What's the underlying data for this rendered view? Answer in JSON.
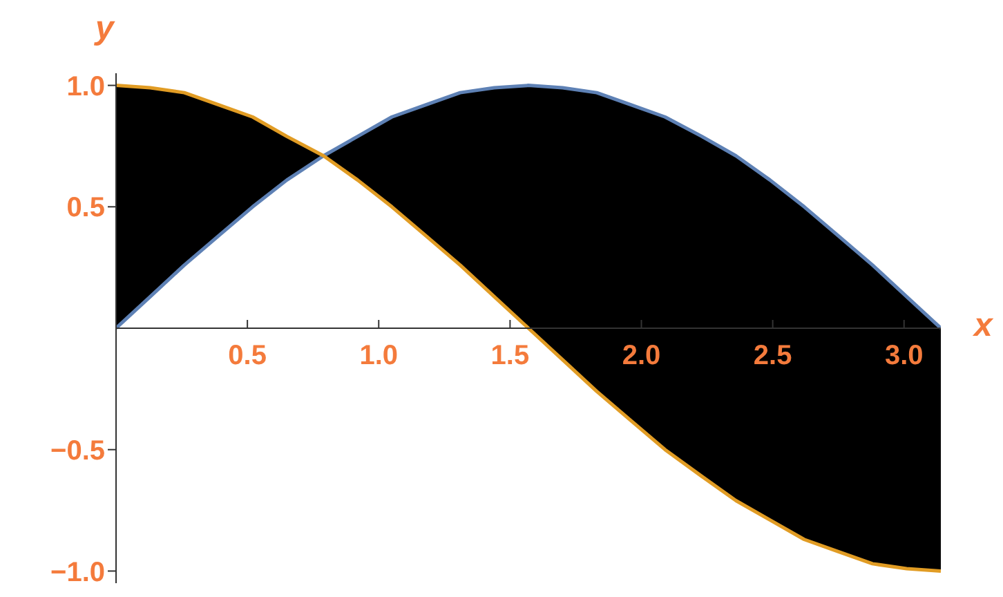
{
  "chart_data": {
    "type": "line",
    "xlabel": "x",
    "ylabel": "y",
    "x": [
      0,
      0.13,
      0.26,
      0.39,
      0.52,
      0.65,
      0.79,
      0.92,
      1.05,
      1.18,
      1.31,
      1.44,
      1.57,
      1.7,
      1.83,
      1.96,
      2.09,
      2.23,
      2.36,
      2.49,
      2.62,
      2.75,
      2.88,
      3.01,
      3.14
    ],
    "series": [
      {
        "color": "#5e81b5",
        "values": [
          0,
          0.13,
          0.26,
          0.38,
          0.5,
          0.61,
          0.71,
          0.79,
          0.87,
          0.92,
          0.97,
          0.99,
          1,
          0.99,
          0.97,
          0.92,
          0.87,
          0.79,
          0.71,
          0.61,
          0.5,
          0.38,
          0.26,
          0.13,
          0
        ],
        "lower": [
          0,
          0.13,
          0.26,
          0.38,
          0.5,
          0.61,
          0.71,
          0.61,
          0.5,
          0.38,
          0.26,
          0.13,
          0,
          -0.13,
          -0.26,
          -0.38,
          -0.5,
          -0.61,
          -0.71,
          -0.79,
          -0.87,
          -0.92,
          -0.97,
          -0.99,
          -1
        ],
        "upper": [
          1,
          0.99,
          0.97,
          0.92,
          0.87,
          0.79,
          0.71,
          0.79,
          0.87,
          0.92,
          0.97,
          0.99,
          1,
          0.99,
          0.97,
          0.92,
          0.87,
          0.79,
          0.71,
          0.61,
          0.5,
          0.38,
          0.26,
          0.13,
          0
        ]
      },
      {
        "color": "#e19c24",
        "values": [
          1,
          0.99,
          0.97,
          0.92,
          0.87,
          0.79,
          0.71,
          0.61,
          0.5,
          0.38,
          0.26,
          0.13,
          0,
          -0.13,
          -0.26,
          -0.38,
          -0.5,
          -0.61,
          -0.71,
          -0.79,
          -0.87,
          -0.92,
          -0.97,
          -0.99,
          -1
        ]
      }
    ],
    "xlim": [
      0,
      3.14
    ],
    "ylim": [
      -1.05,
      1.05
    ],
    "xticks": [
      {
        "value": 0.5,
        "label": "0.5"
      },
      {
        "value": 1,
        "label": "1.0"
      },
      {
        "value": 1.5,
        "label": "1.5"
      },
      {
        "value": 2,
        "label": "2.0"
      },
      {
        "value": 2.5,
        "label": "2.5"
      },
      {
        "value": 3,
        "label": "3.0"
      }
    ],
    "yticks": [
      {
        "value": -1,
        "label": "−1.0"
      },
      {
        "value": -0.5,
        "label": "−0.5"
      },
      {
        "value": 0.5,
        "label": "0.5"
      },
      {
        "value": 1,
        "label": "1.0"
      }
    ],
    "grid": false,
    "legend": false
  }
}
